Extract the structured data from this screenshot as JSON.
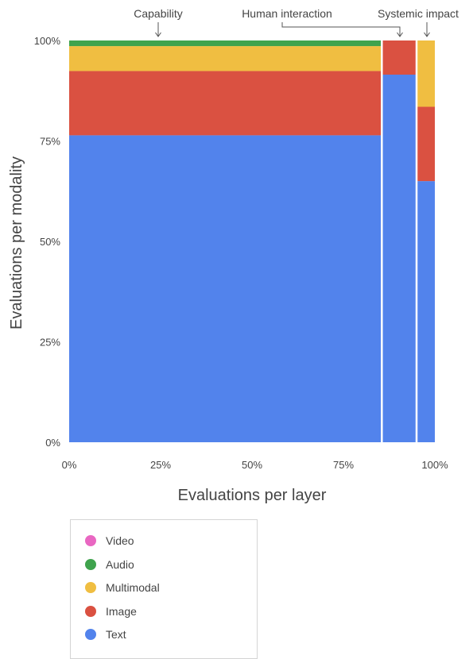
{
  "chart_data": {
    "type": "mosaic",
    "xlabel": "Evaluations per layer",
    "ylabel": "Evaluations per modality",
    "x_ticks": [
      "0%",
      "25%",
      "50%",
      "75%",
      "100%"
    ],
    "y_ticks": [
      "0%",
      "25%",
      "50%",
      "75%",
      "100%"
    ],
    "xlim": [
      0,
      100
    ],
    "ylim": [
      0,
      100
    ],
    "grid": false,
    "legend_placement": "bottom-left",
    "categories": [
      "Capability",
      "Human interaction",
      "Systemic impact"
    ],
    "category_widths": [
      85.5,
      9.5,
      5.0
    ],
    "series": [
      {
        "name": "Video",
        "color": "#E967C2",
        "values": [
          0,
          0,
          0
        ]
      },
      {
        "name": "Audio",
        "color": "#3FA34D",
        "values": [
          1.4,
          0,
          0
        ]
      },
      {
        "name": "Multimodal",
        "color": "#F0BE41",
        "values": [
          6.2,
          0,
          16.5
        ]
      },
      {
        "name": "Image",
        "color": "#DA5141",
        "values": [
          16.0,
          8.5,
          18.5
        ]
      },
      {
        "name": "Text",
        "color": "#5283EC",
        "values": [
          76.4,
          91.5,
          65.0
        ]
      }
    ]
  }
}
